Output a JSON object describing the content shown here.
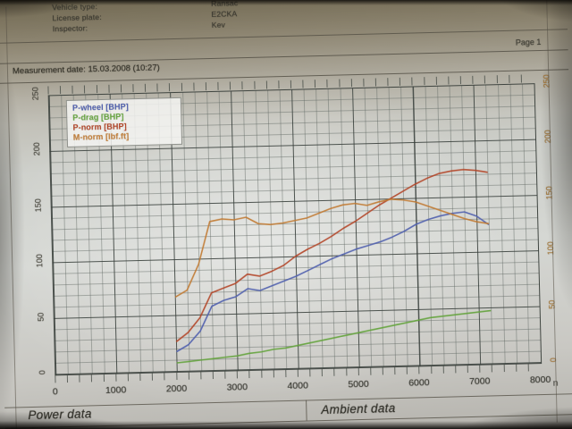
{
  "header": {
    "rows": [
      {
        "label": "Vehicle type:",
        "value": "Ransac"
      },
      {
        "label": "License plate:",
        "value": "E2CKA"
      },
      {
        "label": "Inspector:",
        "value": "Kev"
      }
    ],
    "page_label": "Page 1",
    "measurement_date": "Measurement date: 15.03.2008 (10:27)"
  },
  "chart_data": {
    "type": "line",
    "x_label_unit": "n",
    "xlim": [
      0,
      8000
    ],
    "ylim_left": [
      0,
      250
    ],
    "ylim_right": [
      0,
      250
    ],
    "x_ticks": [
      0,
      1000,
      2000,
      3000,
      4000,
      5000,
      6000,
      7000,
      8000
    ],
    "y_ticks": [
      0,
      50,
      100,
      150,
      200,
      250
    ],
    "grid": "minor 200 rpm x 10 units",
    "legend_position": "top-left",
    "x": [
      2000,
      2200,
      2400,
      2600,
      2800,
      3000,
      3200,
      3400,
      3600,
      3800,
      4000,
      4200,
      4400,
      4600,
      4800,
      5000,
      5200,
      5400,
      5600,
      5800,
      6000,
      6200,
      6400,
      6600,
      6800,
      7000,
      7200
    ],
    "series": [
      {
        "name": "P-wheel [BHP]",
        "color": "#4f5fae",
        "axis": "left",
        "values": [
          18,
          24,
          36,
          58,
          63,
          66,
          73,
          71,
          75,
          79,
          83,
          88,
          93,
          98,
          102,
          106,
          109,
          112,
          116,
          121,
          127,
          131,
          134,
          136,
          137,
          133,
          125
        ]
      },
      {
        "name": "P-drag [BHP]",
        "color": "#63a33c",
        "axis": "left",
        "values": [
          8,
          9,
          10,
          11,
          12,
          13,
          15,
          16,
          18,
          19,
          21,
          23,
          25,
          27,
          29,
          31,
          33,
          35,
          37,
          39,
          41,
          43,
          44,
          45,
          46,
          47,
          48
        ]
      },
      {
        "name": "P-norm [BHP]",
        "color": "#b34629",
        "axis": "left",
        "values": [
          27,
          35,
          48,
          70,
          74,
          78,
          86,
          84,
          88,
          93,
          101,
          107,
          112,
          118,
          125,
          131,
          138,
          145,
          151,
          157,
          163,
          168,
          172,
          174,
          175,
          174,
          172
        ]
      },
      {
        "name": "M-norm [lbf.ft]",
        "color": "#c17b33",
        "axis": "right",
        "values": [
          67,
          73,
          96,
          134,
          136,
          135,
          137,
          131,
          130,
          131,
          133,
          135,
          139,
          143,
          146,
          147,
          145,
          148,
          150,
          149,
          147,
          143,
          139,
          135,
          131,
          128,
          126
        ]
      }
    ]
  },
  "footer": {
    "sections": [
      {
        "label": "Power data"
      },
      {
        "label": "Ambient data"
      }
    ]
  },
  "colors": {
    "right_axis_labels": "#aa7630",
    "paper": "#d5d7d3",
    "background": "#241f17"
  }
}
